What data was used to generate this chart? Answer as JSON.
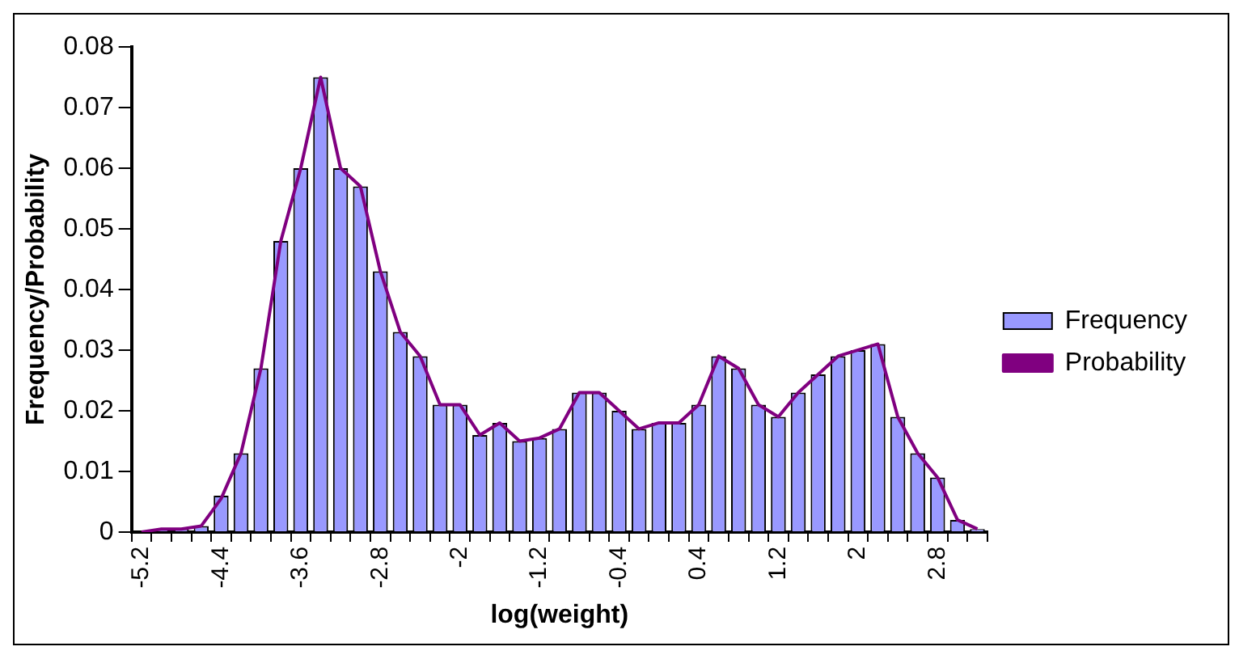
{
  "chart_data": {
    "type": "bar",
    "xlabel": "log(weight)",
    "ylabel": "Frequency/Probability",
    "categories": [
      "-5.2",
      null,
      null,
      null,
      "-4.4",
      null,
      null,
      null,
      "-3.6",
      null,
      null,
      null,
      "-2.8",
      null,
      null,
      null,
      "-2",
      null,
      null,
      null,
      "-1.2",
      null,
      null,
      null,
      "-0.4",
      null,
      null,
      null,
      "0.4",
      null,
      null,
      null,
      "1.2",
      null,
      null,
      null,
      "2",
      null,
      null,
      null,
      "2.8",
      null,
      null
    ],
    "series": [
      {
        "name": "Frequency",
        "color": "#9999ff",
        "values": [
          0,
          0.0005,
          0.0005,
          0.001,
          0.006,
          0.013,
          0.027,
          0.048,
          0.06,
          0.075,
          0.06,
          0.057,
          0.043,
          0.033,
          0.029,
          0.021,
          0.021,
          0.016,
          0.018,
          0.015,
          0.0155,
          0.017,
          0.023,
          0.023,
          0.02,
          0.017,
          0.018,
          0.018,
          0.021,
          0.029,
          0.027,
          0.021,
          0.019,
          0.023,
          0.026,
          0.029,
          0.03,
          0.031,
          0.019,
          0.013,
          0.009,
          0.002,
          0.0005
        ]
      },
      {
        "name": "Probability",
        "type": "line",
        "color": "#800080",
        "values": [
          0,
          0.0005,
          0.0005,
          0.001,
          0.0055,
          0.013,
          0.027,
          0.048,
          0.06,
          0.075,
          0.06,
          0.057,
          0.043,
          0.033,
          0.029,
          0.021,
          0.021,
          0.016,
          0.018,
          0.015,
          0.0155,
          0.017,
          0.023,
          0.023,
          0.02,
          0.017,
          0.018,
          0.018,
          0.021,
          0.029,
          0.027,
          0.021,
          0.019,
          0.023,
          0.026,
          0.029,
          0.03,
          0.031,
          0.019,
          0.013,
          0.009,
          0.002,
          0.0005
        ]
      }
    ],
    "ylim": [
      0,
      0.08
    ],
    "yticks": [
      0,
      0.01,
      0.02,
      0.03,
      0.04,
      0.05,
      0.06,
      0.07,
      0.08
    ],
    "legend": "right",
    "marker": "none"
  }
}
